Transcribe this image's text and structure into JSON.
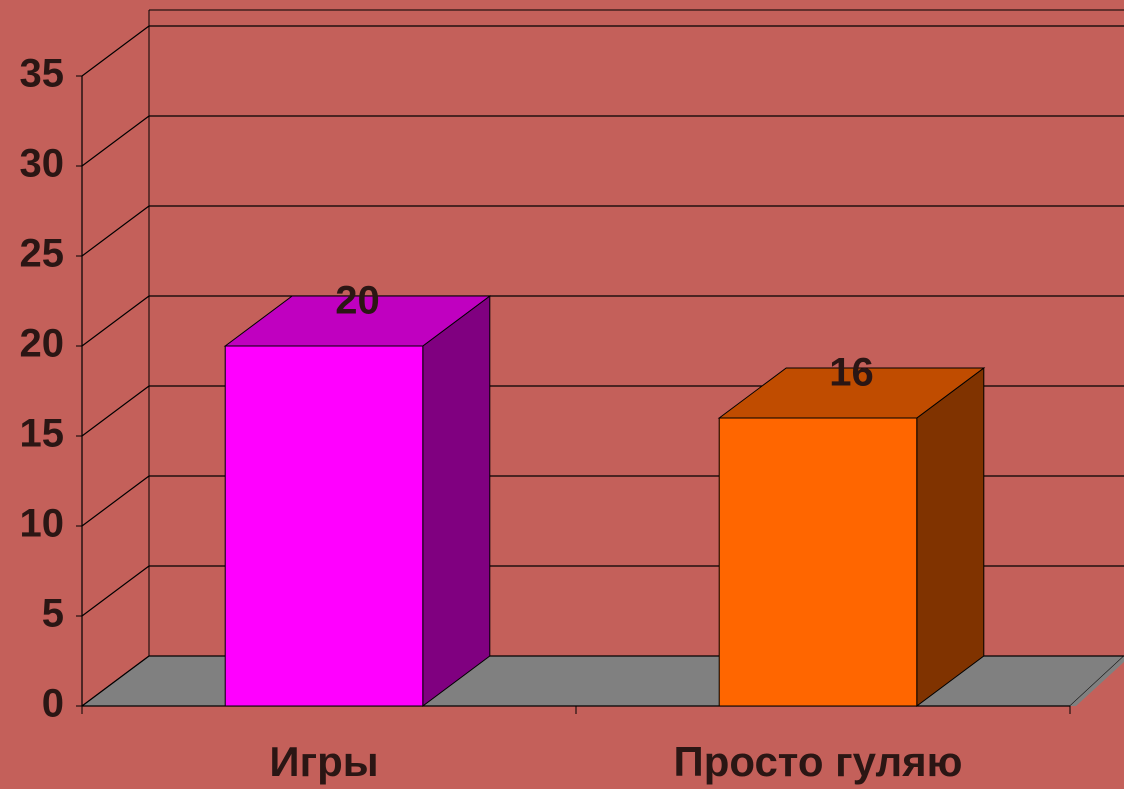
{
  "chart_data": {
    "type": "bar3d",
    "categories": [
      "Игры",
      "Просто гуляю"
    ],
    "values": [
      20,
      16
    ],
    "colors": [
      "#ff00ff",
      "#ff6600"
    ],
    "side_colors": [
      "#800080",
      "#803300"
    ],
    "top_colors": [
      "#c000c0",
      "#c04c00"
    ],
    "ylim": [
      0,
      35
    ],
    "yticks": [
      0,
      5,
      10,
      15,
      20,
      25,
      30,
      35
    ],
    "grid": true
  }
}
